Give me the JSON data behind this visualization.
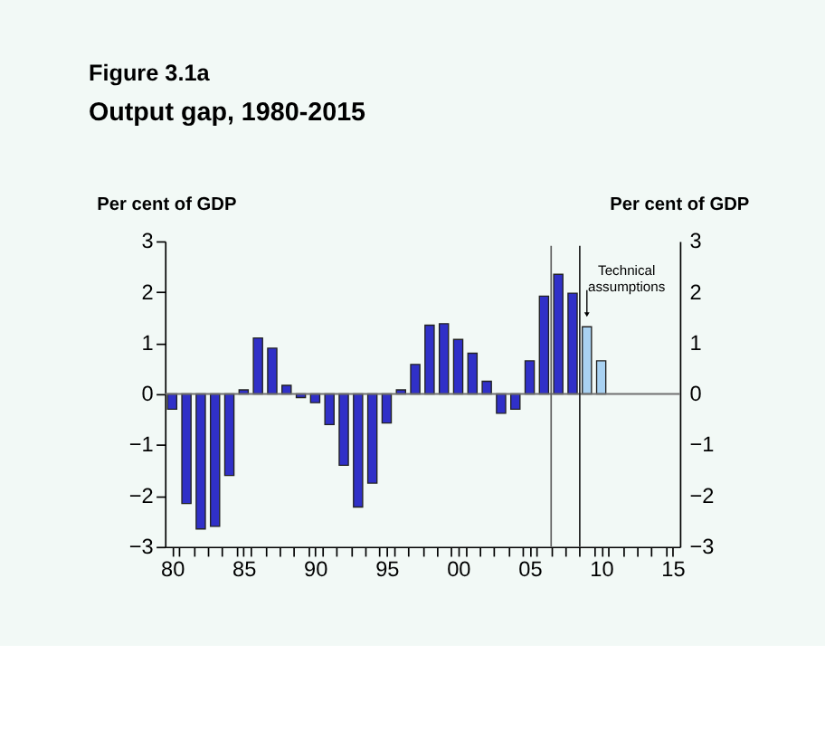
{
  "chart_data": {
    "type": "bar",
    "title": "Figure 3.1a",
    "subtitle": "Output gap, 1980-2015",
    "ylabel": "Per cent of GDP",
    "y2label": "Per cent of GDP",
    "x": [
      1980,
      1981,
      1982,
      1983,
      1984,
      1985,
      1986,
      1987,
      1988,
      1989,
      1990,
      1991,
      1992,
      1993,
      1994,
      1995,
      1996,
      1997,
      1998,
      1999,
      2000,
      2001,
      2002,
      2003,
      2004,
      2005,
      2006,
      2007,
      2008,
      2009,
      2010
    ],
    "values": [
      -0.3,
      -2.15,
      -2.65,
      -2.6,
      -1.6,
      0.08,
      1.1,
      0.9,
      0.17,
      -0.07,
      -0.17,
      -0.6,
      -1.4,
      -2.22,
      -1.75,
      -0.57,
      0.08,
      0.58,
      1.35,
      1.38,
      1.07,
      0.8,
      0.25,
      -0.38,
      -0.3,
      0.65,
      1.92,
      2.35,
      1.98,
      1.32,
      0.65
    ],
    "colors": [
      "#3030c8",
      "#3030c8",
      "#3030c8",
      "#3030c8",
      "#3030c8",
      "#3030c8",
      "#3030c8",
      "#3030c8",
      "#3030c8",
      "#3030c8",
      "#3030c8",
      "#3030c8",
      "#3030c8",
      "#3030c8",
      "#3030c8",
      "#3030c8",
      "#3030c8",
      "#3030c8",
      "#3030c8",
      "#3030c8",
      "#3030c8",
      "#3030c8",
      "#3030c8",
      "#3030c8",
      "#3030c8",
      "#3030c8",
      "#3030c8",
      "#3030c8",
      "#3030c8",
      "#a9d2f2",
      "#a9d2f2"
    ],
    "xlim": [
      1979.5,
      2015.5
    ],
    "xticks": [
      {
        "value": 1980,
        "label": "80"
      },
      {
        "value": 1985,
        "label": "85"
      },
      {
        "value": 1990,
        "label": "90"
      },
      {
        "value": 1995,
        "label": "95"
      },
      {
        "value": 2000,
        "label": "00"
      },
      {
        "value": 2005,
        "label": "05"
      },
      {
        "value": 2010,
        "label": "10"
      },
      {
        "value": 2015,
        "label": "15"
      },
      {
        "value": 1980.5,
        "label": null
      },
      {
        "value": 1981.5,
        "label": null
      },
      {
        "value": 1982.5,
        "label": null
      },
      {
        "value": 1983.5,
        "label": null
      },
      {
        "value": 1984.5,
        "label": null
      },
      {
        "value": 1985.5,
        "label": null
      },
      {
        "value": 1986.5,
        "label": null
      },
      {
        "value": 1987.5,
        "label": null
      },
      {
        "value": 1988.5,
        "label": null
      },
      {
        "value": 1989.5,
        "label": null
      },
      {
        "value": 1990.5,
        "label": null
      },
      {
        "value": 1991.5,
        "label": null
      },
      {
        "value": 1992.5,
        "label": null
      },
      {
        "value": 1993.5,
        "label": null
      },
      {
        "value": 1994.5,
        "label": null
      },
      {
        "value": 1995.5,
        "label": null
      },
      {
        "value": 1996.5,
        "label": null
      },
      {
        "value": 1997.5,
        "label": null
      },
      {
        "value": 1998.5,
        "label": null
      },
      {
        "value": 1999.5,
        "label": null
      },
      {
        "value": 2000.5,
        "label": null
      },
      {
        "value": 2001.5,
        "label": null
      },
      {
        "value": 2002.5,
        "label": null
      },
      {
        "value": 2003.5,
        "label": null
      },
      {
        "value": 2004.5,
        "label": null
      },
      {
        "value": 2005.5,
        "label": null
      },
      {
        "value": 2006.5,
        "label": null
      },
      {
        "value": 2007.5,
        "label": null
      },
      {
        "value": 2008.5,
        "label": null
      },
      {
        "value": 2009.5,
        "label": null
      },
      {
        "value": 2010.5,
        "label": null
      },
      {
        "value": 2011.5,
        "label": null
      },
      {
        "value": 2012.5,
        "label": null
      },
      {
        "value": 2013.5,
        "label": null
      },
      {
        "value": 2014.5,
        "label": null
      }
    ],
    "ylim": [
      -3,
      3
    ],
    "yticks": [
      -3,
      -2,
      -1,
      0,
      1,
      2,
      3
    ],
    "y2lim": [
      -3,
      3
    ],
    "y2ticks": [
      -3,
      -2,
      -1,
      0,
      1,
      2,
      3
    ],
    "ref_lines": [
      {
        "axis": "y",
        "value": 0,
        "color": "#707070"
      },
      {
        "axis": "x",
        "value": 2006.5,
        "color": "#606060"
      },
      {
        "axis": "x",
        "value": 2008.5,
        "color": "#202020"
      }
    ],
    "annotations": [
      {
        "text": "Technical assumptions",
        "x": 2009,
        "y": 1.32
      }
    ],
    "grid": false
  }
}
